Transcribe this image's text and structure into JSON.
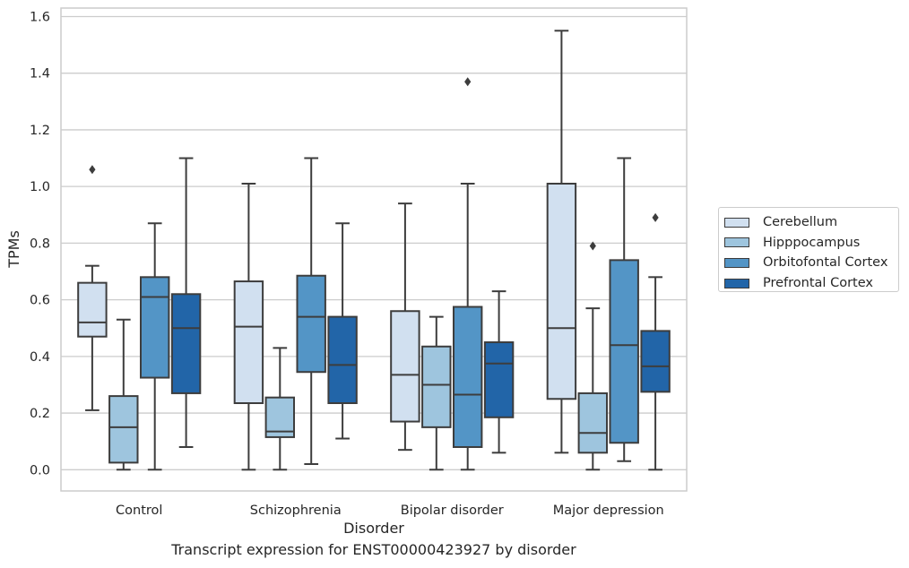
{
  "chart_data": {
    "type": "boxplot",
    "title": "",
    "caption": "Transcript expression for ENST00000423927 by disorder",
    "xlabel": "Disorder",
    "ylabel": "TPMs",
    "ylim": [
      -0.075,
      1.63
    ],
    "yticks": [
      "0.0",
      "0.2",
      "0.4",
      "0.6",
      "0.8",
      "1.0",
      "1.2",
      "1.4",
      "1.6"
    ],
    "grid": "horizontal",
    "legend_position": "outside-right",
    "categories": [
      "Control",
      "Schizophrenia",
      "Bipolar disorder",
      "Major depression"
    ],
    "series": [
      {
        "name": "Cerebellum",
        "color": "#d1e0f0",
        "boxes": [
          {
            "whisker_low": 0.21,
            "q1": 0.47,
            "median": 0.52,
            "q3": 0.66,
            "whisker_high": 0.72,
            "outliers": [
              1.06
            ]
          },
          {
            "whisker_low": 0.0,
            "q1": 0.235,
            "median": 0.505,
            "q3": 0.665,
            "whisker_high": 1.01,
            "outliers": []
          },
          {
            "whisker_low": 0.07,
            "q1": 0.17,
            "median": 0.335,
            "q3": 0.56,
            "whisker_high": 0.94,
            "outliers": []
          },
          {
            "whisker_low": 0.06,
            "q1": 0.25,
            "median": 0.5,
            "q3": 1.01,
            "whisker_high": 1.55,
            "outliers": []
          }
        ]
      },
      {
        "name": "Hipppocampus",
        "color": "#9ec5de",
        "boxes": [
          {
            "whisker_low": 0.0,
            "q1": 0.025,
            "median": 0.15,
            "q3": 0.26,
            "whisker_high": 0.53,
            "outliers": []
          },
          {
            "whisker_low": 0.0,
            "q1": 0.115,
            "median": 0.135,
            "q3": 0.255,
            "whisker_high": 0.43,
            "outliers": []
          },
          {
            "whisker_low": 0.0,
            "q1": 0.15,
            "median": 0.3,
            "q3": 0.435,
            "whisker_high": 0.54,
            "outliers": []
          },
          {
            "whisker_low": 0.0,
            "q1": 0.06,
            "median": 0.13,
            "q3": 0.27,
            "whisker_high": 0.57,
            "outliers": [
              0.79
            ]
          }
        ]
      },
      {
        "name": "Orbitofontal Cortex",
        "color": "#5395c6",
        "boxes": [
          {
            "whisker_low": 0.0,
            "q1": 0.325,
            "median": 0.61,
            "q3": 0.68,
            "whisker_high": 0.87,
            "outliers": []
          },
          {
            "whisker_low": 0.02,
            "q1": 0.345,
            "median": 0.54,
            "q3": 0.685,
            "whisker_high": 1.1,
            "outliers": []
          },
          {
            "whisker_low": 0.0,
            "q1": 0.08,
            "median": 0.265,
            "q3": 0.575,
            "whisker_high": 1.01,
            "outliers": [
              1.37
            ]
          },
          {
            "whisker_low": 0.03,
            "q1": 0.095,
            "median": 0.44,
            "q3": 0.74,
            "whisker_high": 1.1,
            "outliers": []
          }
        ]
      },
      {
        "name": "Prefrontal Cortex",
        "color": "#2265a8",
        "boxes": [
          {
            "whisker_low": 0.08,
            "q1": 0.27,
            "median": 0.5,
            "q3": 0.62,
            "whisker_high": 1.1,
            "outliers": []
          },
          {
            "whisker_low": 0.11,
            "q1": 0.235,
            "median": 0.37,
            "q3": 0.54,
            "whisker_high": 0.87,
            "outliers": []
          },
          {
            "whisker_low": 0.06,
            "q1": 0.185,
            "median": 0.375,
            "q3": 0.45,
            "whisker_high": 0.63,
            "outliers": []
          },
          {
            "whisker_low": 0.0,
            "q1": 0.275,
            "median": 0.365,
            "q3": 0.49,
            "whisker_high": 0.68,
            "outliers": [
              0.89
            ]
          }
        ]
      }
    ]
  }
}
